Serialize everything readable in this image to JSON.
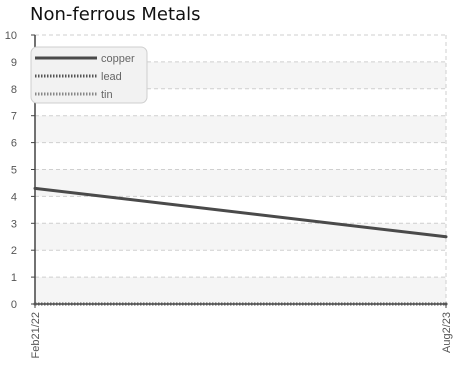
{
  "chart_data": {
    "type": "line",
    "title": "Non-ferrous Metals",
    "xlabel": "",
    "ylabel": "",
    "x": [
      "Feb21/22",
      "Aug2/23"
    ],
    "ylim": [
      0,
      10
    ],
    "yticks": [
      "0",
      "1",
      "2",
      "3",
      "4",
      "5",
      "6",
      "7",
      "8",
      "9",
      "10"
    ],
    "grid": true,
    "legend_position": "top-left",
    "series": [
      {
        "name": "copper",
        "values": [
          4.3,
          2.5
        ],
        "color": "#4a4a4a",
        "style": "solid"
      },
      {
        "name": "lead",
        "values": [
          0,
          0
        ],
        "color": "#555555",
        "style": "dotted"
      },
      {
        "name": "tin",
        "values": [
          0,
          0
        ],
        "color": "#888888",
        "style": "dotted"
      }
    ]
  }
}
